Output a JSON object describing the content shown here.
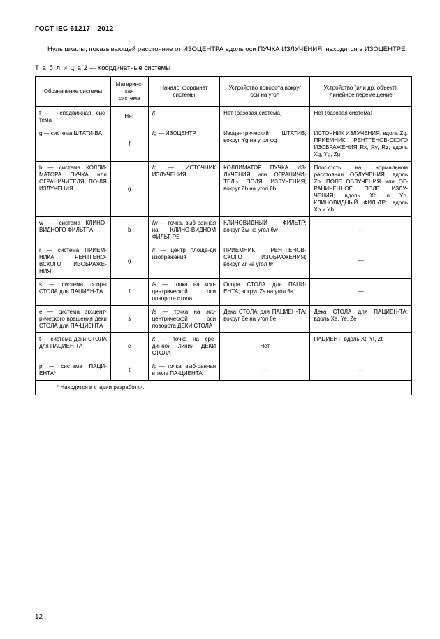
{
  "header": "ГОСТ IEC 61217—2012",
  "intro": "Нуль шкалы, показывающей расстояние от ИЗОЦЕНТРА вдоль оси ПУЧКА ИЗЛУЧЕНИЯ, находится в ИЗОЦЕНТРЕ.",
  "caption_spaced": "Т а б л и ц а",
  "caption_rest": "  2 — Координатные системы",
  "columns": {
    "c1": "Обозначение системы",
    "c2": "Материнс-кая система",
    "c3": "Начало координат системы",
    "c4": "Устройство поворота вокруг оси на угол",
    "c5": "Устройство (или др. объект); линейное перемещение"
  },
  "rows": [
    {
      "c1": "f — неподвижная сис-тема",
      "c2": "Нет",
      "c3_pre": "I",
      "c3_it": "f",
      "c3_post": "",
      "c4": "Нет (базовая система)",
      "c5": "Нет (базовая система)"
    },
    {
      "c1": "g — система ШТАТИ-ВА",
      "c2": "f",
      "c3_pre": "I",
      "c3_it": "g",
      "c3_post": " — ИЗОЦЕНТР",
      "c4": "Изоцентрический ШТАТИВ; вокруг Yg на угол φg",
      "c5": "ИСТОЧНИК ИЗЛУЧЕНИЯ; вдоль Zg. ПРИЕМНИК РЕНТГЕНОВ-СКОГО ИЗОБРАЖЕНИЯ Rx, Ry, Rz; вдоль Xg, Yg, Zg"
    },
    {
      "c1": "b — система КОЛЛИ-МАТОРА ПУЧКА или ОГРАНИЧИТЕЛЯ ПО-ЛЯ ИЗЛУЧЕНИЯ",
      "c2": "g",
      "c3_pre": "I",
      "c3_it": "b",
      "c3_post": " — ИСТОЧНИК ИЗЛУЧЕНИЯ",
      "c4": "КОЛЛИМАТОР ПУЧКА ИЗ-ЛУЧЕНИЯ или ОГРАНИЧИ-ТЕЛЬ ПОЛЯ ИЗЛУЧЕНИЯ; вокруг Zb на угол θb",
      "c5": "Плоскость на нормальном расстоянии ОБЛУЧЕНИЯ; вдоль Zb. ПОЛЕ ОБЛУЧЕНИЯ или ОГ-РАНИЧЕННОЕ ПОЛЕ ИЗЛУ-ЧЕНИЯ; вдоль Xb и Yb. КЛИНОВИДНЫЙ ФИЛЬТР; вдоль Xb и Yb"
    },
    {
      "c1": "w — система КЛИНО-ВИДНОГО ФИЛЬТРА",
      "c2": "b",
      "c3_pre": "I",
      "c3_it": "w",
      "c3_post": " — точка, выб-ранная на КЛИНО-ВИДНОМ ФИЛЬТ-РЕ",
      "c4": "КЛИНОВИДНЫЙ ФИЛЬТР; вокруг Zw на угол θw",
      "c5": "—",
      "c5_dash": true
    },
    {
      "c1": "r — система ПРИЕМ-НИКА РЕНТГЕНО-ВСКОГО ИЗОБРАЖЕ-НИЯ",
      "c2": "g",
      "c3_pre": "I",
      "c3_it": "r",
      "c3_post": " — центр площа-ди изображения",
      "c4": "ПРИЕМНИК РЕНТГЕНОВ-СКОГО ИЗОБРАЖЕНИЯ; вокруг Zr на угол θr",
      "c5": "—",
      "c5_dash": true
    },
    {
      "c1": "s — система опоры СТОЛА для ПАЦИЕН-ТА",
      "c2": "f",
      "c3_pre": "I",
      "c3_it": "s",
      "c3_post": " — точка на изо-центрической оси поворота стола",
      "c4": "Опора СТОЛА для ПАЦИ-ЕНТА; вокруг Zs на угол θs",
      "c5": "—",
      "c5_dash": true
    },
    {
      "c1": "e — система эксцент-рического вращения деки СТОЛА для ПА-ЦИЕНТА",
      "c2": "s",
      "c3_pre": "I",
      "c3_it": "e",
      "c3_post": " — точка на экс-центрической оси поворота ДЕКИ СТОЛА",
      "c4": "Дека СТОЛА для ПАЦИЕН-ТА; вокруг Ze на угол θe",
      "c5": "Дека СТОЛА для ПАЦИЕН-ТА; вдоль Xe, Ye, Ze"
    },
    {
      "c1": "t — система деки СТОЛА для ПАЦИЕН-ТА",
      "c2": "e",
      "c3_pre": "I",
      "c3_it": "t",
      "c3_post": " — точка на сре-динной линии ДЕКИ СТОЛА",
      "c4": "Нет",
      "c4_center": true,
      "c5": "ПАЦИЕНТ; вдоль Xt, Yt, Zt"
    },
    {
      "c1": "p — система ПАЦИ-ЕНТА*",
      "c2": "t",
      "c3_pre": "I",
      "c3_it": "p",
      "c3_post": " — точка, выб-ранная в теле ПА-ЦИЕНТА",
      "c4": "—",
      "c4_dash": true,
      "c5": "—",
      "c5_dash": true
    }
  ],
  "footnote": "* Находится в стадии разработки.",
  "pagenum": "12"
}
